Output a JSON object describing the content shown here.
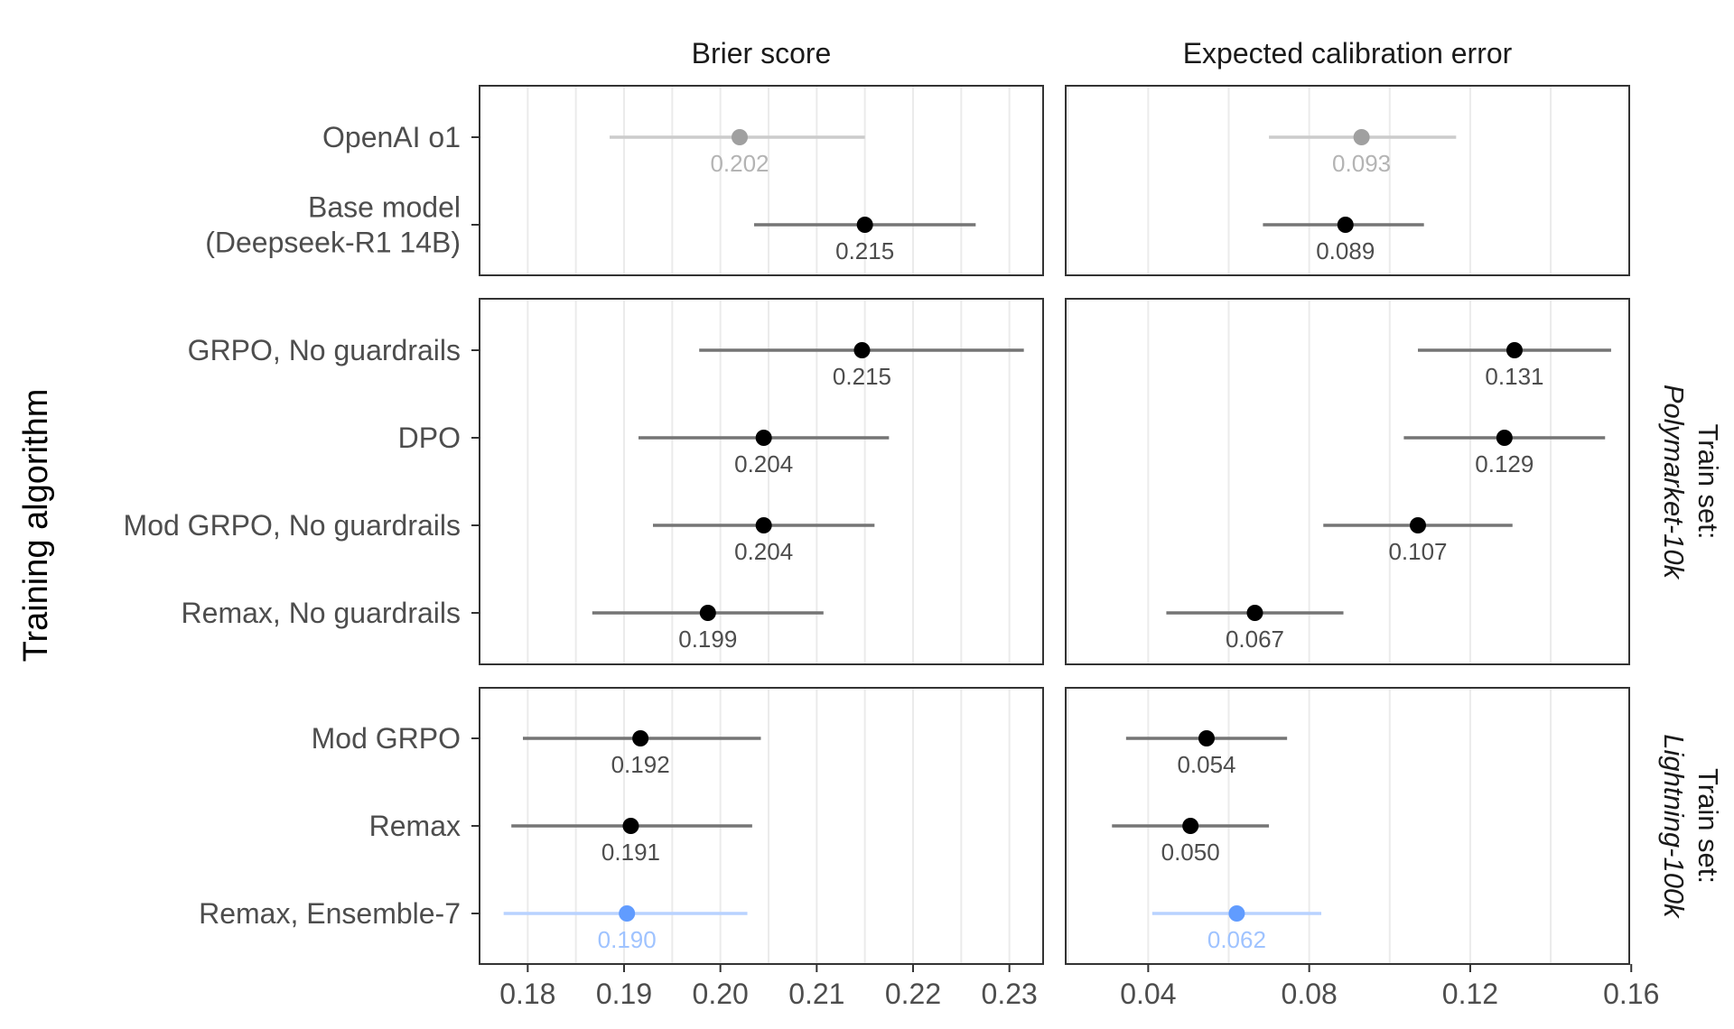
{
  "chart_data": {
    "type": "dot-errorbar",
    "ylabel": "Training algorithm",
    "columns": [
      {
        "key": "brier",
        "title": "Brier score",
        "xlim": [
          0.175,
          0.2335
        ],
        "ticks": [
          0.18,
          0.19,
          0.2,
          0.21,
          0.22,
          0.23
        ],
        "tick_labels": [
          "0.18",
          "0.19",
          "0.20",
          "0.21",
          "0.22",
          "0.23"
        ]
      },
      {
        "key": "ece",
        "title": "Expected calibration error",
        "xlim": [
          0.0195,
          0.1595
        ],
        "ticks": [
          0.04,
          0.08,
          0.12,
          0.16
        ],
        "tick_labels": [
          "0.04",
          "0.08",
          "0.12",
          "0.16"
        ]
      }
    ],
    "panels": [
      {
        "strip": null,
        "rows": [
          {
            "label": [
              "OpenAI o1"
            ],
            "color": "#a0a0a0",
            "label_color": "#b4b4b4",
            "line_color": "#cccccc",
            "brier": {
              "value": 0.202,
              "lo": 0.1885,
              "hi": 0.215,
              "text": "0.202"
            },
            "ece": {
              "value": 0.093,
              "lo": 0.07,
              "hi": 0.1165,
              "text": "0.093"
            }
          },
          {
            "label": [
              "Base model",
              "(Deepseek-R1 14B)"
            ],
            "color": "#000000",
            "label_color": "#444444",
            "line_color": "#757575",
            "brier": {
              "value": 0.215,
              "lo": 0.2035,
              "hi": 0.2265,
              "text": "0.215"
            },
            "ece": {
              "value": 0.089,
              "lo": 0.0685,
              "hi": 0.1085,
              "text": "0.089"
            }
          }
        ]
      },
      {
        "strip": [
          "Train set:",
          "Polymarket-10k"
        ],
        "rows": [
          {
            "label": [
              "GRPO, No guardrails"
            ],
            "color": "#000000",
            "label_color": "#444444",
            "line_color": "#757575",
            "brier": {
              "value": 0.2147,
              "lo": 0.1978,
              "hi": 0.2315,
              "text": "0.215"
            },
            "ece": {
              "value": 0.131,
              "lo": 0.107,
              "hi": 0.155,
              "text": "0.131"
            }
          },
          {
            "label": [
              "DPO"
            ],
            "color": "#000000",
            "label_color": "#444444",
            "line_color": "#757575",
            "brier": {
              "value": 0.2045,
              "lo": 0.1915,
              "hi": 0.2175,
              "text": "0.204"
            },
            "ece": {
              "value": 0.1285,
              "lo": 0.1035,
              "hi": 0.1535,
              "text": "0.129"
            }
          },
          {
            "label": [
              "Mod GRPO, No guardrails"
            ],
            "color": "#000000",
            "label_color": "#444444",
            "line_color": "#757575",
            "brier": {
              "value": 0.2045,
              "lo": 0.193,
              "hi": 0.216,
              "text": "0.204"
            },
            "ece": {
              "value": 0.107,
              "lo": 0.0835,
              "hi": 0.1305,
              "text": "0.107"
            }
          },
          {
            "label": [
              "Remax, No guardrails"
            ],
            "color": "#000000",
            "label_color": "#444444",
            "line_color": "#757575",
            "brier": {
              "value": 0.1987,
              "lo": 0.1867,
              "hi": 0.2107,
              "text": "0.199"
            },
            "ece": {
              "value": 0.0665,
              "lo": 0.0445,
              "hi": 0.0885,
              "text": "0.067"
            }
          }
        ]
      },
      {
        "strip": [
          "Train set:",
          "Lightning-100k"
        ],
        "rows": [
          {
            "label": [
              "Mod GRPO"
            ],
            "color": "#000000",
            "label_color": "#444444",
            "line_color": "#757575",
            "brier": {
              "value": 0.1917,
              "lo": 0.1795,
              "hi": 0.2042,
              "text": "0.192"
            },
            "ece": {
              "value": 0.0545,
              "lo": 0.0345,
              "hi": 0.0745,
              "text": "0.054"
            }
          },
          {
            "label": [
              "Remax"
            ],
            "color": "#000000",
            "label_color": "#444444",
            "line_color": "#757575",
            "brier": {
              "value": 0.1907,
              "lo": 0.1783,
              "hi": 0.2033,
              "text": "0.191"
            },
            "ece": {
              "value": 0.0505,
              "lo": 0.031,
              "hi": 0.07,
              "text": "0.050"
            }
          },
          {
            "label": [
              "Remax, Ensemble-7"
            ],
            "color": "#619cff",
            "label_color": "#9fc3ff",
            "line_color": "#b8d2ff",
            "brier": {
              "value": 0.1903,
              "lo": 0.1775,
              "hi": 0.2028,
              "text": "0.190"
            },
            "ece": {
              "value": 0.062,
              "lo": 0.041,
              "hi": 0.083,
              "text": "0.062"
            }
          }
        ]
      }
    ]
  }
}
